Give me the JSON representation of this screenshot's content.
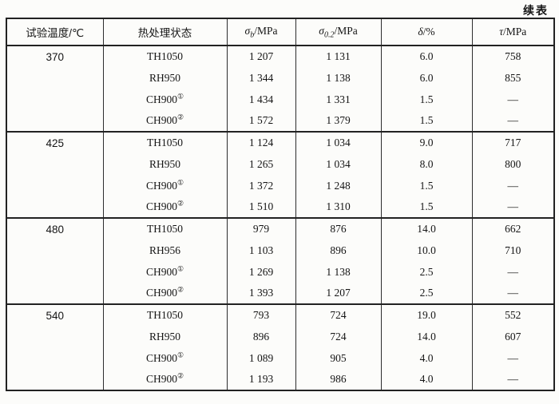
{
  "page": {
    "continued_label": "续表"
  },
  "table": {
    "headers": [
      {
        "label": "试验温度/℃"
      },
      {
        "label": "热处理状态"
      },
      {
        "sym": "σ",
        "sub": "b",
        "unit": "/MPa"
      },
      {
        "sym": "σ",
        "sub": "0.2",
        "unit": "/MPa"
      },
      {
        "sym": "δ",
        "sub": "",
        "unit": "/%"
      },
      {
        "sym": "τ",
        "sub": "",
        "unit": "/MPa"
      }
    ],
    "groups": [
      {
        "temperature": "370",
        "rows": [
          {
            "state": "TH1050",
            "sup": "",
            "sigma_b": "1 207",
            "sigma_02": "1 131",
            "delta": "6.0",
            "tau": "758"
          },
          {
            "state": "RH950",
            "sup": "",
            "sigma_b": "1 344",
            "sigma_02": "1 138",
            "delta": "6.0",
            "tau": "855"
          },
          {
            "state": "CH900",
            "sup": "①",
            "sigma_b": "1 434",
            "sigma_02": "1 331",
            "delta": "1.5",
            "tau": "—"
          },
          {
            "state": "CH900",
            "sup": "②",
            "sigma_b": "1 572",
            "sigma_02": "1 379",
            "delta": "1.5",
            "tau": "—"
          }
        ]
      },
      {
        "temperature": "425",
        "rows": [
          {
            "state": "TH1050",
            "sup": "",
            "sigma_b": "1 124",
            "sigma_02": "1 034",
            "delta": "9.0",
            "tau": "717"
          },
          {
            "state": "RH950",
            "sup": "",
            "sigma_b": "1 265",
            "sigma_02": "1 034",
            "delta": "8.0",
            "tau": "800"
          },
          {
            "state": "CH900",
            "sup": "①",
            "sigma_b": "1 372",
            "sigma_02": "1 248",
            "delta": "1.5",
            "tau": "—"
          },
          {
            "state": "CH900",
            "sup": "②",
            "sigma_b": "1 510",
            "sigma_02": "1 310",
            "delta": "1.5",
            "tau": "—"
          }
        ]
      },
      {
        "temperature": "480",
        "rows": [
          {
            "state": "TH1050",
            "sup": "",
            "sigma_b": "979",
            "sigma_02": "876",
            "delta": "14.0",
            "tau": "662"
          },
          {
            "state": "RH956",
            "sup": "",
            "sigma_b": "1 103",
            "sigma_02": "896",
            "delta": "10.0",
            "tau": "710"
          },
          {
            "state": "CH900",
            "sup": "①",
            "sigma_b": "1 269",
            "sigma_02": "1 138",
            "delta": "2.5",
            "tau": "—"
          },
          {
            "state": "CH900",
            "sup": "②",
            "sigma_b": "1 393",
            "sigma_02": "1 207",
            "delta": "2.5",
            "tau": "—"
          }
        ]
      },
      {
        "temperature": "540",
        "rows": [
          {
            "state": "TH1050",
            "sup": "",
            "sigma_b": "793",
            "sigma_02": "724",
            "delta": "19.0",
            "tau": "552"
          },
          {
            "state": "RH950",
            "sup": "",
            "sigma_b": "896",
            "sigma_02": "724",
            "delta": "14.0",
            "tau": "607"
          },
          {
            "state": "CH900",
            "sup": "①",
            "sigma_b": "1 089",
            "sigma_02": "905",
            "delta": "4.0",
            "tau": "—"
          },
          {
            "state": "CH900",
            "sup": "②",
            "sigma_b": "1 193",
            "sigma_02": "986",
            "delta": "4.0",
            "tau": "—"
          }
        ]
      }
    ]
  }
}
